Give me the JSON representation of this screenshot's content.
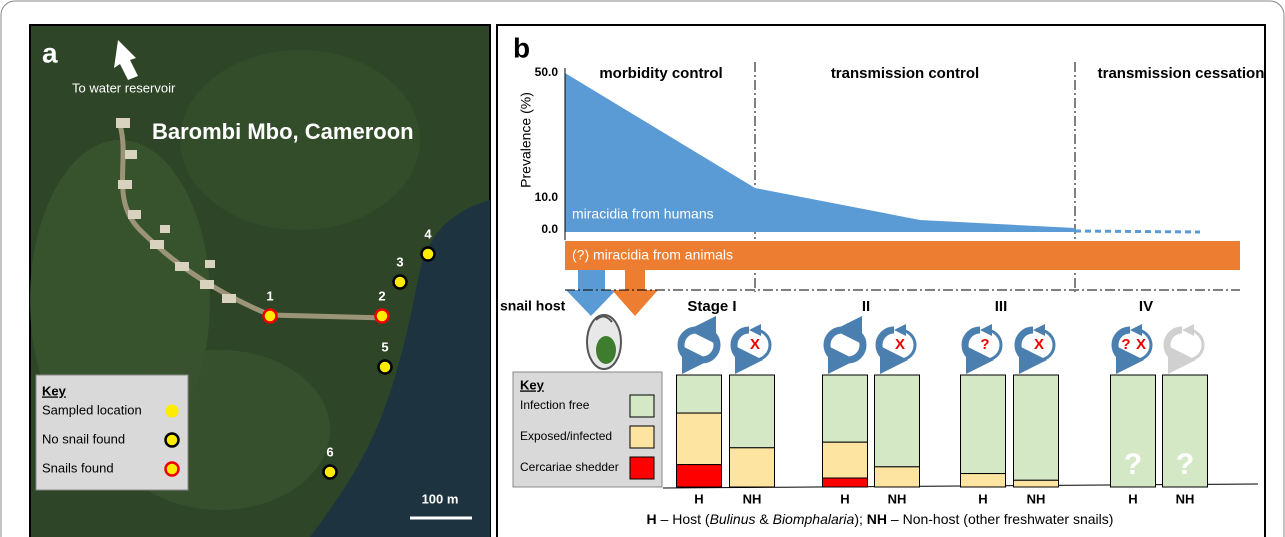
{
  "panel_a": {
    "label": "a",
    "arrow_text": "To water reservoir",
    "title": "Barombi Mbo, Cameroon",
    "sites": [
      "1",
      "2",
      "3",
      "4",
      "5",
      "6"
    ],
    "key": {
      "title": "Key",
      "items": [
        "Sampled location",
        "No snail found",
        "Snails found"
      ]
    },
    "scale": "100 m"
  },
  "panel_b": {
    "label": "b",
    "phases": [
      "morbidity control",
      "transmission control",
      "transmission cessation"
    ],
    "y_label": "Prevalence (%)",
    "yticks": [
      "50.0",
      "10.0",
      "0.0"
    ],
    "human_label": "miracidia from humans",
    "animal_label": "(?) miracidia from animals",
    "snail_host": "snail host",
    "key": {
      "title": "Key",
      "items": [
        "Infection free",
        "Exposed/infected",
        "Cercariae shedder"
      ]
    },
    "bar_labels": [
      "H",
      "NH"
    ],
    "stages": [
      {
        "name": "Stage I",
        "nh_mark": "X",
        "h": [
          34,
          46,
          20
        ],
        "nh": [
          65,
          35,
          0
        ]
      },
      {
        "name": "II",
        "nh_mark": "X",
        "h": [
          60,
          32,
          8
        ],
        "nh": [
          82,
          18,
          0
        ]
      },
      {
        "name": "III",
        "h_mark": "?",
        "nh_mark": "X",
        "h": [
          88,
          12,
          0
        ],
        "nh": [
          94,
          6,
          0
        ]
      },
      {
        "name": "IV",
        "h_mark": "?",
        "h_mark2": "X",
        "h": [
          100,
          0,
          0
        ],
        "nh": [
          100,
          0,
          0
        ],
        "unknown": "?"
      }
    ],
    "footer": [
      "H",
      " – Host (",
      "Bulinus",
      " & ",
      "Biomphalaria",
      "); ",
      "NH",
      " – Non-host (other freshwater snails)"
    ]
  }
}
